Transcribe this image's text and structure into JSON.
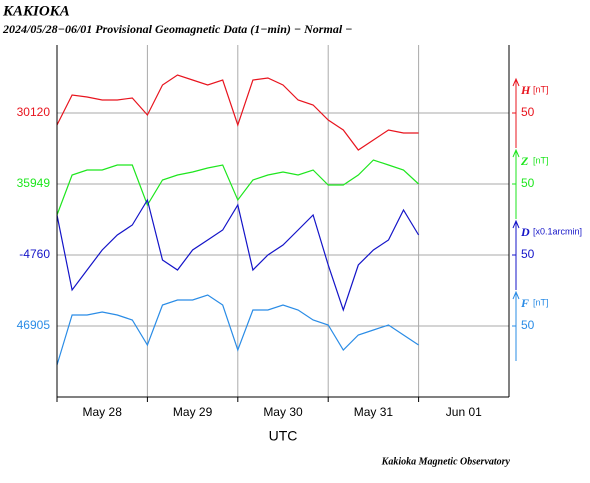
{
  "chart_data": {
    "type": "line",
    "title": "KAKIOKA",
    "subtitle": "2024/05/28−06/01  Provisional Geomagnetic Data (1−min)  − Normal −",
    "xlabel": "UTC",
    "footer": "Kakioka Magnetic Observatory",
    "categories": [
      "May 28",
      "May 29",
      "May 30",
      "May 31",
      "Jun 01"
    ],
    "xlim": [
      0,
      120
    ],
    "x": [
      0,
      4,
      8,
      12,
      16,
      20,
      24,
      28,
      32,
      36,
      40,
      44,
      48,
      52,
      56,
      60,
      64,
      68,
      72,
      76,
      80,
      84,
      88,
      92,
      96
    ],
    "grid": true,
    "series": [
      {
        "name": "H",
        "unit": "[nT]",
        "color": "#e8141e",
        "scale": 50,
        "ylim": [
          29552,
          30256
        ],
        "yticks": [
          30120
        ],
        "values": [
          30096,
          30156,
          30152,
          30146,
          30146,
          30150,
          30116,
          30176,
          30196,
          30186,
          30176,
          30186,
          30096,
          30186,
          30190,
          30176,
          30146,
          30136,
          30106,
          30086,
          30046,
          30066,
          30086,
          30080,
          30080
        ]
      },
      {
        "name": "Z",
        "unit": "[nT]",
        "color": "#1ee61e",
        "scale": 50,
        "ylim": [
          35523,
          36227
        ],
        "yticks": [
          35949
        ],
        "values": [
          35887,
          35967,
          35977,
          35977,
          35987,
          35987,
          35907,
          35957,
          35967,
          35973,
          35981,
          35987,
          35917,
          35957,
          35967,
          35973,
          35967,
          35977,
          35947,
          35947,
          35967,
          35997,
          35987,
          35977,
          35949
        ]
      },
      {
        "name": "D",
        "unit": "[x0.1arcmin]",
        "color": "#1414c8",
        "scale": 50,
        "ylim": [
          -5044,
          -4340
        ],
        "yticks": [
          -4760
        ],
        "values": [
          -4680,
          -4830,
          -4790,
          -4750,
          -4720,
          -4700,
          -4650,
          -4770,
          -4790,
          -4750,
          -4730,
          -4710,
          -4660,
          -4790,
          -4760,
          -4740,
          -4710,
          -4680,
          -4780,
          -4870,
          -4780,
          -4750,
          -4730,
          -4670,
          -4720
        ]
      },
      {
        "name": "F",
        "unit": "[nT]",
        "color": "#2a8ce6",
        "scale": 50,
        "ylim": [
          46763,
          47467
        ],
        "yticks": [
          46905
        ],
        "values": [
          46827,
          46927,
          46927,
          46933,
          46927,
          46917,
          46867,
          46947,
          46957,
          46957,
          46967,
          46947,
          46857,
          46937,
          46937,
          46947,
          46937,
          46917,
          46907,
          46857,
          46887,
          46897,
          46907,
          46887,
          46867
        ]
      }
    ]
  }
}
